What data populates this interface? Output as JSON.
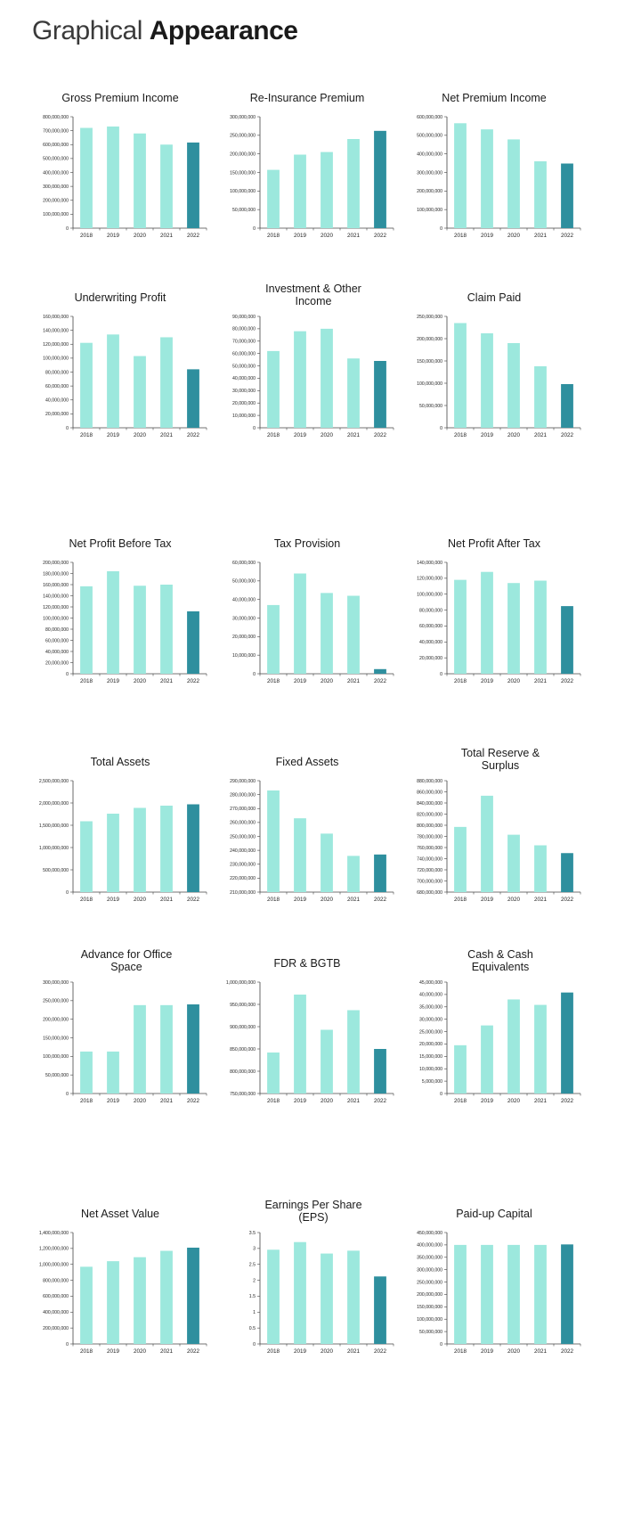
{
  "page": {
    "title_light": "Graphical",
    "title_bold": "Appearance"
  },
  "colors": {
    "bar": "#9ce8dd",
    "highlight": "#2e8f9e",
    "axis": "#444444"
  },
  "chart_data": [
    {
      "type": "bar",
      "title": "Gross Premium Income",
      "categories": [
        "2018",
        "2019",
        "2020",
        "2021",
        "2022"
      ],
      "values": [
        720000000,
        730000000,
        680000000,
        600000000,
        615000000
      ],
      "ylim": [
        0,
        800000000
      ],
      "ticks": [
        0,
        100000000,
        200000000,
        300000000,
        400000000,
        500000000,
        600000000,
        700000000,
        800000000
      ],
      "highlight_last": true
    },
    {
      "type": "bar",
      "title": "Re-Insurance Premium",
      "categories": [
        "2018",
        "2019",
        "2020",
        "2021",
        "2022"
      ],
      "values": [
        157000000,
        198000000,
        205000000,
        240000000,
        262000000
      ],
      "ylim": [
        0,
        300000000
      ],
      "ticks": [
        0,
        50000000,
        100000000,
        150000000,
        200000000,
        250000000,
        300000000
      ],
      "highlight_last": true
    },
    {
      "type": "bar",
      "title": "Net Premium Income",
      "categories": [
        "2018",
        "2019",
        "2020",
        "2021",
        "2022"
      ],
      "values": [
        565000000,
        532000000,
        478000000,
        360000000,
        348000000
      ],
      "ylim": [
        0,
        600000000
      ],
      "ticks": [
        0,
        100000000,
        200000000,
        300000000,
        400000000,
        500000000,
        600000000
      ],
      "highlight_last": true
    },
    {
      "type": "bar",
      "title": "Underwriting Profit",
      "categories": [
        "2018",
        "2019",
        "2020",
        "2021",
        "2022"
      ],
      "values": [
        122000000,
        134000000,
        103000000,
        130000000,
        84000000
      ],
      "ylim": [
        0,
        160000000
      ],
      "ticks": [
        0,
        20000000,
        40000000,
        60000000,
        80000000,
        100000000,
        120000000,
        140000000,
        160000000
      ],
      "highlight_last": true
    },
    {
      "type": "bar",
      "title": "Investment & Other Income",
      "categories": [
        "2018",
        "2019",
        "2020",
        "2021",
        "2022"
      ],
      "values": [
        62000000,
        78000000,
        80000000,
        56000000,
        54000000
      ],
      "ylim": [
        0,
        90000000
      ],
      "ticks": [
        0,
        10000000,
        20000000,
        30000000,
        40000000,
        50000000,
        60000000,
        70000000,
        80000000,
        90000000
      ],
      "highlight_last": true
    },
    {
      "type": "bar",
      "title": "Claim Paid",
      "categories": [
        "2018",
        "2019",
        "2020",
        "2021",
        "2022"
      ],
      "values": [
        235000000,
        212000000,
        190000000,
        138000000,
        98000000
      ],
      "ylim": [
        0,
        250000000
      ],
      "ticks": [
        0,
        50000000,
        100000000,
        150000000,
        200000000,
        250000000
      ],
      "highlight_last": true
    },
    {
      "type": "bar",
      "title": "Net Profit Before Tax",
      "categories": [
        "2018",
        "2019",
        "2020",
        "2021",
        "2022"
      ],
      "values": [
        157000000,
        184000000,
        158000000,
        160000000,
        112000000
      ],
      "ylim": [
        0,
        200000000
      ],
      "ticks": [
        0,
        20000000,
        40000000,
        60000000,
        80000000,
        100000000,
        120000000,
        140000000,
        160000000,
        180000000,
        200000000
      ],
      "highlight_last": true
    },
    {
      "type": "bar",
      "title": "Tax Provision",
      "categories": [
        "2018",
        "2019",
        "2020",
        "2021",
        "2022"
      ],
      "values": [
        37000000,
        54000000,
        43500000,
        42000000,
        2500000
      ],
      "ylim": [
        0,
        60000000
      ],
      "ticks": [
        0,
        10000000,
        20000000,
        30000000,
        40000000,
        50000000,
        60000000
      ],
      "highlight_last": true
    },
    {
      "type": "bar",
      "title": "Net Profit After Tax",
      "categories": [
        "2018",
        "2019",
        "2020",
        "2021",
        "2022"
      ],
      "values": [
        118000000,
        128000000,
        114000000,
        117000000,
        85000000
      ],
      "ylim": [
        0,
        140000000
      ],
      "ticks": [
        0,
        20000000,
        40000000,
        60000000,
        80000000,
        100000000,
        120000000,
        140000000
      ],
      "highlight_last": true
    },
    {
      "type": "bar",
      "title": "Total Assets",
      "categories": [
        "2018",
        "2019",
        "2020",
        "2021",
        "2022"
      ],
      "values": [
        1590000000,
        1760000000,
        1890000000,
        1940000000,
        1970000000
      ],
      "ylim": [
        0,
        2500000000
      ],
      "ticks": [
        0,
        500000000,
        1000000000,
        1500000000,
        2000000000,
        2500000000
      ],
      "highlight_last": true
    },
    {
      "type": "bar",
      "title": "Fixed Assets",
      "categories": [
        "2018",
        "2019",
        "2020",
        "2021",
        "2022"
      ],
      "values": [
        283000000,
        263000000,
        252000000,
        236000000,
        237000000
      ],
      "ylim": [
        210000000,
        290000000
      ],
      "ticks": [
        210000000,
        220000000,
        230000000,
        240000000,
        250000000,
        260000000,
        270000000,
        280000000,
        290000000
      ],
      "highlight_last": true
    },
    {
      "type": "bar",
      "title": "Total Reserve & Surplus",
      "categories": [
        "2018",
        "2019",
        "2020",
        "2021",
        "2022"
      ],
      "values": [
        797000000,
        853000000,
        783000000,
        764000000,
        750000000
      ],
      "ylim": [
        680000000,
        880000000
      ],
      "ticks": [
        680000000,
        700000000,
        720000000,
        740000000,
        760000000,
        780000000,
        800000000,
        820000000,
        840000000,
        860000000,
        880000000
      ],
      "highlight_last": true
    },
    {
      "type": "bar",
      "title": "Advance for Office Space",
      "categories": [
        "2018",
        "2019",
        "2020",
        "2021",
        "2022"
      ],
      "values": [
        113000000,
        113000000,
        238000000,
        238000000,
        240000000
      ],
      "ylim": [
        0,
        300000000
      ],
      "ticks": [
        0,
        50000000,
        100000000,
        150000000,
        200000000,
        250000000,
        300000000
      ],
      "highlight_last": true
    },
    {
      "type": "bar",
      "title": "FDR & BGTB",
      "categories": [
        "2018",
        "2019",
        "2020",
        "2021",
        "2022"
      ],
      "values": [
        842000000,
        972000000,
        893000000,
        937000000,
        850000000
      ],
      "ylim": [
        750000000,
        1000000000
      ],
      "ticks": [
        750000000,
        800000000,
        850000000,
        900000000,
        950000000,
        1000000000
      ],
      "highlight_last": true
    },
    {
      "type": "bar",
      "title": "Cash & Cash Equivalents",
      "categories": [
        "2018",
        "2019",
        "2020",
        "2021",
        "2022"
      ],
      "values": [
        19500000,
        27500000,
        38000000,
        35800000,
        40800000
      ],
      "ylim": [
        0,
        45000000
      ],
      "ticks": [
        0,
        5000000,
        10000000,
        15000000,
        20000000,
        25000000,
        30000000,
        35000000,
        40000000,
        45000000
      ],
      "highlight_last": true
    },
    {
      "type": "bar",
      "title": "Net Asset Value",
      "categories": [
        "2018",
        "2019",
        "2020",
        "2021",
        "2022"
      ],
      "values": [
        970000000,
        1040000000,
        1090000000,
        1170000000,
        1210000000
      ],
      "ylim": [
        0,
        1400000000
      ],
      "ticks": [
        0,
        200000000,
        400000000,
        600000000,
        800000000,
        1000000000,
        1200000000,
        1400000000
      ],
      "highlight_last": true
    },
    {
      "type": "bar",
      "title": "Earnings Per Share (EPS)",
      "categories": [
        "2018",
        "2019",
        "2020",
        "2021",
        "2022"
      ],
      "values": [
        2.96,
        3.2,
        2.84,
        2.93,
        2.12
      ],
      "ylim": [
        0,
        3.5
      ],
      "ticks": [
        0,
        0.5,
        1,
        1.5,
        2,
        2.5,
        3,
        3.5
      ],
      "tick_labels": [
        "0",
        "0.5",
        "1",
        "1.5",
        "2",
        "2.5",
        "3",
        "3.5"
      ],
      "highlight_last": true
    },
    {
      "type": "bar",
      "title": "Paid-up Capital",
      "categories": [
        "2018",
        "2019",
        "2020",
        "2021",
        "2022"
      ],
      "values": [
        400000000,
        400000000,
        400000000,
        400000000,
        402000000
      ],
      "ylim": [
        0,
        450000000
      ],
      "ticks": [
        0,
        50000000,
        100000000,
        150000000,
        200000000,
        250000000,
        300000000,
        350000000,
        400000000,
        450000000
      ],
      "highlight_last": true
    }
  ]
}
